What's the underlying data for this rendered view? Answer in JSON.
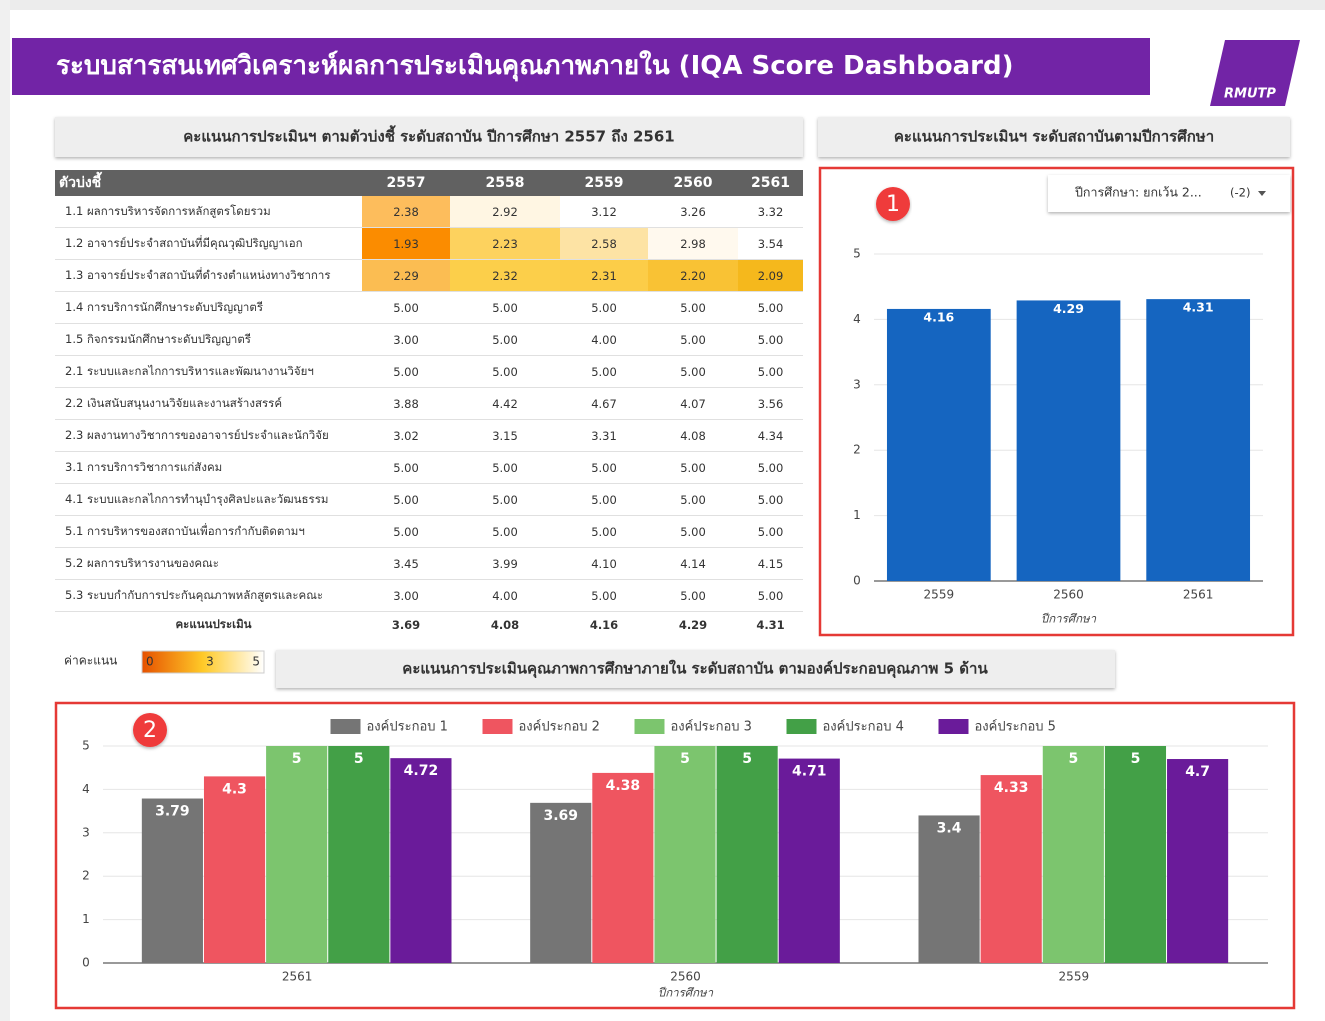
{
  "header": {
    "title": "ระบบสารสนเทศวิเคราะห์ผลการประเมินคุณภาพภายใน (IQA Score Dashboard)",
    "logo": "RMUTP"
  },
  "table": {
    "title": "คะแนนการประเมินฯ ตามตัวบ่งชี้ ระดับสถาบัน ปีการศึกษา 2557 ถึง 2561",
    "columns": [
      "ตัวบ่งชี้",
      "2557",
      "2558",
      "2559",
      "2560",
      "2561"
    ],
    "rows": [
      {
        "label": "1.1 ผลการบริหารจัดการหลักสูตรโดยรวม",
        "values": [
          "2.38",
          "2.92",
          "3.12",
          "3.26",
          "3.32"
        ],
        "colors": [
          "#fdbd5c",
          "#fff6e3",
          "#ffffff",
          "#ffffff",
          "#ffffff"
        ]
      },
      {
        "label": "1.2 อาจารย์ประจำสถาบันที่มีคุณวุฒิปริญญาเอก",
        "values": [
          "1.93",
          "2.23",
          "2.58",
          "2.98",
          "3.54"
        ],
        "colors": [
          "#fb8c00",
          "#fdd25e",
          "#fde3a4",
          "#fff9ee",
          "#ffffff"
        ]
      },
      {
        "label": "1.3 อาจารย์ประจำสถาบันที่ดำรงตำแหน่งทางวิชาการ",
        "values": [
          "2.29",
          "2.32",
          "2.31",
          "2.20",
          "2.09"
        ],
        "colors": [
          "#fbbd52",
          "#fccf4a",
          "#fccd48",
          "#f9c234",
          "#f5b81c"
        ]
      },
      {
        "label": "1.4 การบริการนักศึกษาระดับปริญญาตรี",
        "values": [
          "5.00",
          "5.00",
          "5.00",
          "5.00",
          "5.00"
        ]
      },
      {
        "label": "1.5 กิจกรรมนักศึกษาระดับปริญญาตรี",
        "values": [
          "3.00",
          "5.00",
          "4.00",
          "5.00",
          "5.00"
        ]
      },
      {
        "label": "2.1 ระบบและกลไกการบริหารและพัฒนางานวิจัยฯ",
        "values": [
          "5.00",
          "5.00",
          "5.00",
          "5.00",
          "5.00"
        ]
      },
      {
        "label": "2.2 เงินสนับสนุนงานวิจัยและงานสร้างสรรค์",
        "values": [
          "3.88",
          "4.42",
          "4.67",
          "4.07",
          "3.56"
        ]
      },
      {
        "label": "2.3 ผลงานทางวิชาการของอาจารย์ประจำและนักวิจัย",
        "values": [
          "3.02",
          "3.15",
          "3.31",
          "4.08",
          "4.34"
        ]
      },
      {
        "label": "3.1 การบริการวิชาการแก่สังคม",
        "values": [
          "5.00",
          "5.00",
          "5.00",
          "5.00",
          "5.00"
        ]
      },
      {
        "label": "4.1 ระบบและกลไกการทำนุบำรุงศิลปะและวัฒนธรรม",
        "values": [
          "5.00",
          "5.00",
          "5.00",
          "5.00",
          "5.00"
        ]
      },
      {
        "label": "5.1 การบริหารของสถาบันเพื่อการกำกับติดตามฯ",
        "values": [
          "5.00",
          "5.00",
          "5.00",
          "5.00",
          "5.00"
        ]
      },
      {
        "label": "5.2 ผลการบริหารงานของคณะ",
        "values": [
          "3.45",
          "3.99",
          "4.10",
          "4.14",
          "4.15"
        ]
      },
      {
        "label": "5.3 ระบบกำกับการประกันคุณภาพหลักสูตรและคณะ",
        "values": [
          "3.00",
          "4.00",
          "5.00",
          "5.00",
          "5.00"
        ]
      }
    ],
    "total": {
      "label": "คะแนนประเมิน",
      "values": [
        "3.69",
        "4.08",
        "4.16",
        "4.29",
        "4.31"
      ]
    }
  },
  "color_scale": {
    "label": "ค่าคะแนน",
    "ticks": [
      "0",
      "3",
      "5"
    ],
    "colors": [
      "#e65100",
      "#ffca28",
      "#ffffff"
    ]
  },
  "filter": {
    "label": "ปีการศึกษา: ยกเว้น 2...",
    "count": "(-2)"
  },
  "chart_data": [
    {
      "type": "bar",
      "title": "คะแนนการประเมินฯ ระดับสถาบันตามปีการศึกษา",
      "annotation": "1",
      "categories": [
        "2559",
        "2560",
        "2561"
      ],
      "values": [
        4.16,
        4.29,
        4.31
      ],
      "color": "#1565c0",
      "x_label": "ปีการศึกษา",
      "ylim": [
        0,
        5
      ],
      "yticks": [
        0,
        1,
        2,
        3,
        4,
        5
      ],
      "grid": true
    },
    {
      "type": "bar",
      "title": "คะแนนการประเมินคุณภาพการศึกษาภายใน ระดับสถาบัน ตามองค์ประกอบคุณภาพ 5 ด้าน",
      "annotation": "2",
      "categories": [
        "2561",
        "2560",
        "2559"
      ],
      "x_label": "ปีการศึกษา",
      "ylim": [
        0,
        5
      ],
      "yticks": [
        0,
        1,
        2,
        3,
        4,
        5
      ],
      "grid": true,
      "legend": "top",
      "series": [
        {
          "name": "องค์ประกอบ 1",
          "color": "#757575",
          "values": [
            3.79,
            3.69,
            3.4
          ]
        },
        {
          "name": "องค์ประกอบ 2",
          "color": "#ef5560",
          "values": [
            4.3,
            4.38,
            4.33
          ]
        },
        {
          "name": "องค์ประกอบ 3",
          "color": "#7cc56e",
          "values": [
            5,
            5,
            5
          ]
        },
        {
          "name": "องค์ประกอบ 4",
          "color": "#43a047",
          "values": [
            5,
            5,
            5
          ]
        },
        {
          "name": "องค์ประกอบ 5",
          "color": "#6a1b9a",
          "values": [
            4.72,
            4.71,
            4.7
          ]
        }
      ]
    }
  ]
}
